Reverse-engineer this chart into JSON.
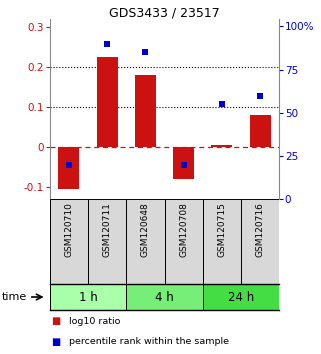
{
  "title": "GDS3433 / 23517",
  "samples": [
    "GSM120710",
    "GSM120711",
    "GSM120648",
    "GSM120708",
    "GSM120715",
    "GSM120716"
  ],
  "log10_ratio": [
    -0.105,
    0.225,
    0.182,
    -0.078,
    0.005,
    0.08
  ],
  "percentile_rank": [
    0.2,
    0.9,
    0.85,
    0.2,
    0.55,
    0.6
  ],
  "bar_color": "#cc1111",
  "dot_color": "#0000cc",
  "ylim_left": [
    -0.13,
    0.32
  ],
  "ylim_right": [
    0.0,
    1.04
  ],
  "yticks_left": [
    -0.1,
    0.0,
    0.1,
    0.2,
    0.3
  ],
  "ytick_labels_left": [
    "-0.1",
    "0",
    "0.1",
    "0.2",
    "0.3"
  ],
  "yticks_right": [
    0.0,
    0.25,
    0.5,
    0.75,
    1.0
  ],
  "ytick_labels_right": [
    "0",
    "25",
    "50",
    "75",
    "100%"
  ],
  "hline_y": 0.0,
  "dotted_lines": [
    0.1,
    0.2
  ],
  "time_groups": [
    {
      "label": "1 h",
      "indices": [
        0,
        1
      ],
      "color": "#aaffaa"
    },
    {
      "label": "4 h",
      "indices": [
        2,
        3
      ],
      "color": "#77ee77"
    },
    {
      "label": "24 h",
      "indices": [
        4,
        5
      ],
      "color": "#44dd44"
    }
  ],
  "legend_items": [
    {
      "label": "log10 ratio",
      "color": "#cc1111"
    },
    {
      "label": "percentile rank within the sample",
      "color": "#0000cc"
    }
  ],
  "xlabel_time": "time",
  "bg_color": "#d8d8d8",
  "bar_width": 0.55
}
